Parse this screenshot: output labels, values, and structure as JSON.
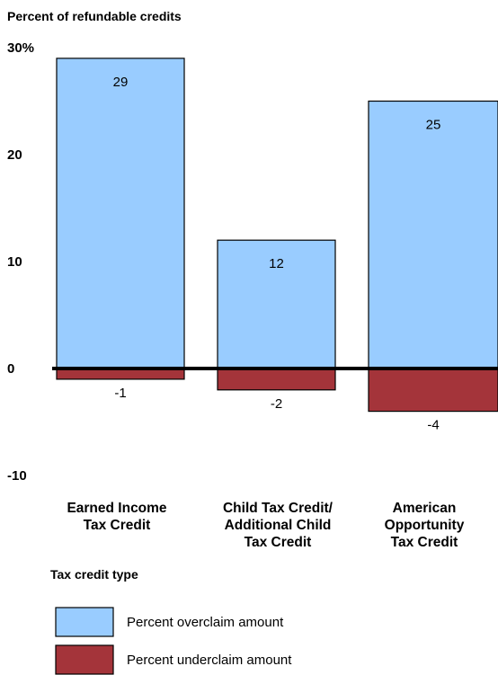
{
  "chart_data": {
    "type": "bar",
    "title": "",
    "ylabel": "Percent of refundable credits",
    "xlabel": "Tax credit type",
    "ylim": [
      -10,
      30
    ],
    "yticks": [
      {
        "value": 30,
        "label": "30%"
      },
      {
        "value": 20,
        "label": "20"
      },
      {
        "value": 10,
        "label": "10"
      },
      {
        "value": 0,
        "label": "0"
      },
      {
        "value": -10,
        "label": "-10"
      }
    ],
    "categories": [
      [
        "Earned Income",
        "Tax Credit"
      ],
      [
        "Child Tax Credit/",
        "Additional Child",
        "Tax Credit"
      ],
      [
        "American",
        "Opportunity",
        "Tax Credit"
      ]
    ],
    "series": [
      {
        "name": "Percent overclaim amount",
        "color": "#99ccff",
        "values": [
          29,
          12,
          25
        ],
        "labels": [
          "29",
          "12",
          "25"
        ]
      },
      {
        "name": "Percent underclaim amount",
        "color": "#a4343a",
        "values": [
          -1,
          -2,
          -4
        ],
        "labels": [
          "-1",
          "-2",
          "-4"
        ]
      }
    ],
    "grid": false,
    "legend_position": "bottom-left"
  }
}
